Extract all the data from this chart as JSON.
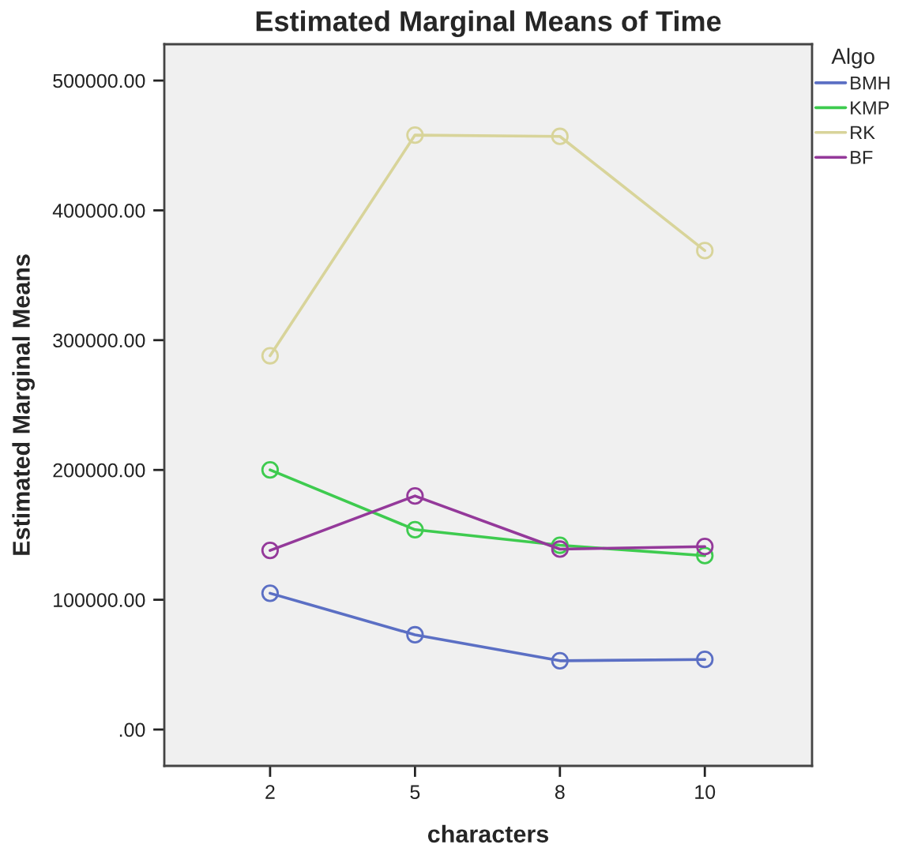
{
  "chart_data": {
    "type": "line",
    "title": "Estimated Marginal Means of Time",
    "xlabel": "characters",
    "ylabel": "Estimated Marginal Means",
    "legend_title": "Algo",
    "categories": [
      "2",
      "5",
      "8",
      "10"
    ],
    "series": [
      {
        "name": "BMH",
        "color": "#5b6fc4",
        "values": [
          105000,
          73000,
          53000,
          54000
        ]
      },
      {
        "name": "KMP",
        "color": "#3ecb4f",
        "values": [
          200000,
          154000,
          142000,
          134000
        ]
      },
      {
        "name": "RK",
        "color": "#d8d49a",
        "values": [
          288000,
          458000,
          457000,
          369000
        ]
      },
      {
        "name": "BF",
        "color": "#94399a",
        "values": [
          138000,
          180000,
          139000,
          141000
        ]
      }
    ],
    "ylim": [
      -28000,
      528000
    ],
    "yticks": [
      {
        "value": 0,
        "label": ".00"
      },
      {
        "value": 100000,
        "label": "100000.00"
      },
      {
        "value": 200000,
        "label": "200000.00"
      },
      {
        "value": 300000,
        "label": "300000.00"
      },
      {
        "value": 400000,
        "label": "400000.00"
      },
      {
        "value": 500000,
        "label": "500000.00"
      }
    ],
    "marker": "circle",
    "line_style": "solid",
    "grid": false,
    "legend": "right"
  }
}
